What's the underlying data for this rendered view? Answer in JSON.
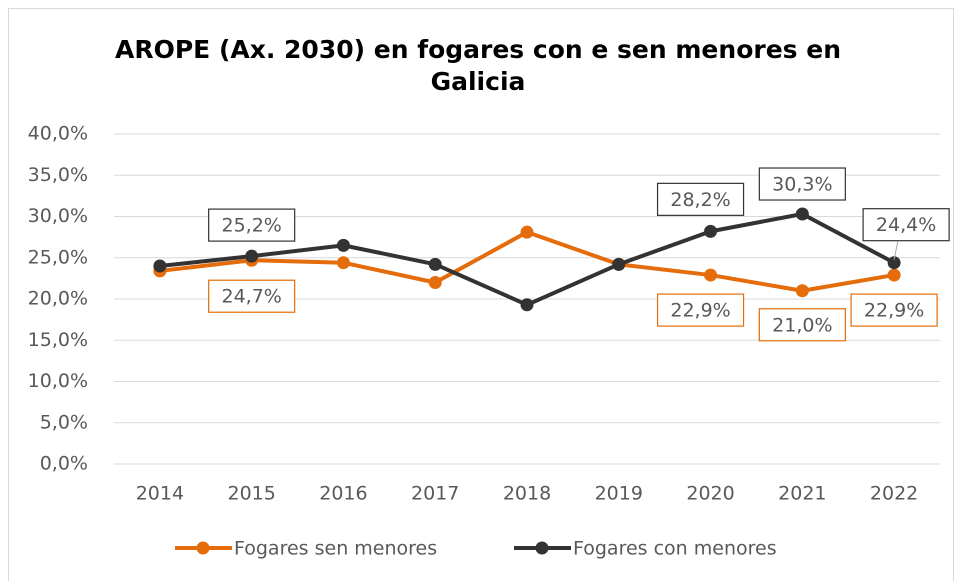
{
  "chart_data": {
    "type": "line",
    "title": "AROPE (Ax. 2030) en fogares con e sen menores en Galicia",
    "categories": [
      "2014",
      "2015",
      "2016",
      "2017",
      "2018",
      "2019",
      "2020",
      "2021",
      "2022"
    ],
    "series": [
      {
        "name": "Fogares sen menores",
        "color": "#e46c0a",
        "values": [
          23.4,
          24.7,
          24.4,
          22.0,
          28.1,
          24.2,
          22.9,
          21.0,
          22.9
        ],
        "value_labels": [
          null,
          "24,7%",
          null,
          null,
          null,
          null,
          "22,9%",
          "21,0%",
          "22,9%"
        ]
      },
      {
        "name": "Fogares con menores",
        "color": "#333333",
        "values": [
          24.0,
          25.2,
          26.5,
          24.2,
          19.3,
          24.2,
          28.2,
          30.3,
          24.4
        ],
        "value_labels": [
          null,
          "25,2%",
          null,
          null,
          null,
          null,
          "28,2%",
          "30,3%",
          "24,4%"
        ]
      }
    ],
    "ylim": [
      0,
      40
    ],
    "yticks": [
      {
        "value": 0,
        "label": "0,0%"
      },
      {
        "value": 5,
        "label": "5,0%"
      },
      {
        "value": 10,
        "label": "10,0%"
      },
      {
        "value": 15,
        "label": "15,0%"
      },
      {
        "value": 20,
        "label": "20,0%"
      },
      {
        "value": 25,
        "label": "25,0%"
      },
      {
        "value": 30,
        "label": "30,0%"
      },
      {
        "value": 35,
        "label": "35,0%"
      },
      {
        "value": 40,
        "label": "40,0%"
      }
    ],
    "grid": true,
    "legend": "bottom"
  }
}
